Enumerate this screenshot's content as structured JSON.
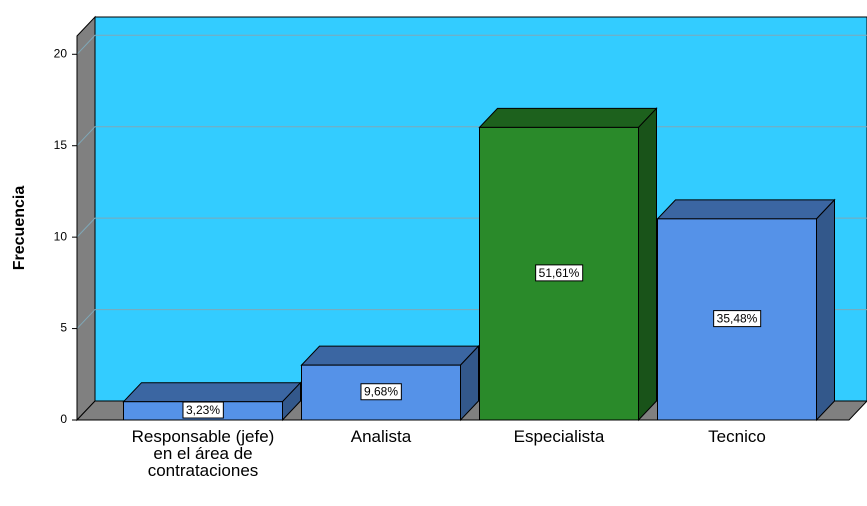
{
  "chart_data": {
    "type": "bar3d",
    "y_label": "Frecuencia",
    "categories": [
      "Responsable (jefe) en el área de contrataciones",
      "Analista",
      "Especialista",
      "Tecnico"
    ],
    "values": [
      1,
      3,
      16,
      11
    ],
    "value_labels": [
      "3,23%",
      "9,68%",
      "51,61%",
      "35,48%"
    ],
    "colors": [
      "#5592e8",
      "#5592e8",
      "#2a8a2a",
      "#5592e8"
    ],
    "ylim": [
      0,
      21
    ],
    "yticks": [
      0,
      5,
      10,
      15,
      20
    ],
    "grid": true
  }
}
